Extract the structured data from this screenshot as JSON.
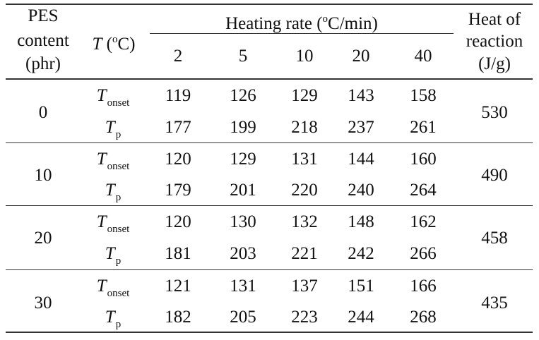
{
  "table": {
    "headers": {
      "pes_line1": "PES",
      "pes_line2": "content",
      "pes_line3": "(phr)",
      "t_symbol": "T",
      "t_degree": "o",
      "t_unit": "C)",
      "heating_prefix": "Heating rate (",
      "heating_degree": "o",
      "heating_unit": "C/min)",
      "heat_line1": "Heat of",
      "heat_line2": "reaction",
      "heat_line3": "(J/g)",
      "rates": [
        "2",
        "5",
        "10",
        "20",
        "40"
      ]
    },
    "row_labels": {
      "onset_symbol": "T",
      "onset_sub": "onset",
      "peak_symbol": "T",
      "peak_sub": "p"
    },
    "groups": [
      {
        "pes": "0",
        "onset": [
          "119",
          "126",
          "129",
          "143",
          "158"
        ],
        "peak": [
          "177",
          "199",
          "218",
          "237",
          "261"
        ],
        "heat": "530"
      },
      {
        "pes": "10",
        "onset": [
          "120",
          "129",
          "131",
          "144",
          "160"
        ],
        "peak": [
          "179",
          "201",
          "220",
          "240",
          "264"
        ],
        "heat": "490"
      },
      {
        "pes": "20",
        "onset": [
          "120",
          "130",
          "132",
          "148",
          "162"
        ],
        "peak": [
          "181",
          "203",
          "221",
          "242",
          "266"
        ],
        "heat": "458"
      },
      {
        "pes": "30",
        "onset": [
          "121",
          "131",
          "137",
          "151",
          "166"
        ],
        "peak": [
          "182",
          "205",
          "223",
          "244",
          "268"
        ],
        "heat": "435"
      }
    ]
  }
}
